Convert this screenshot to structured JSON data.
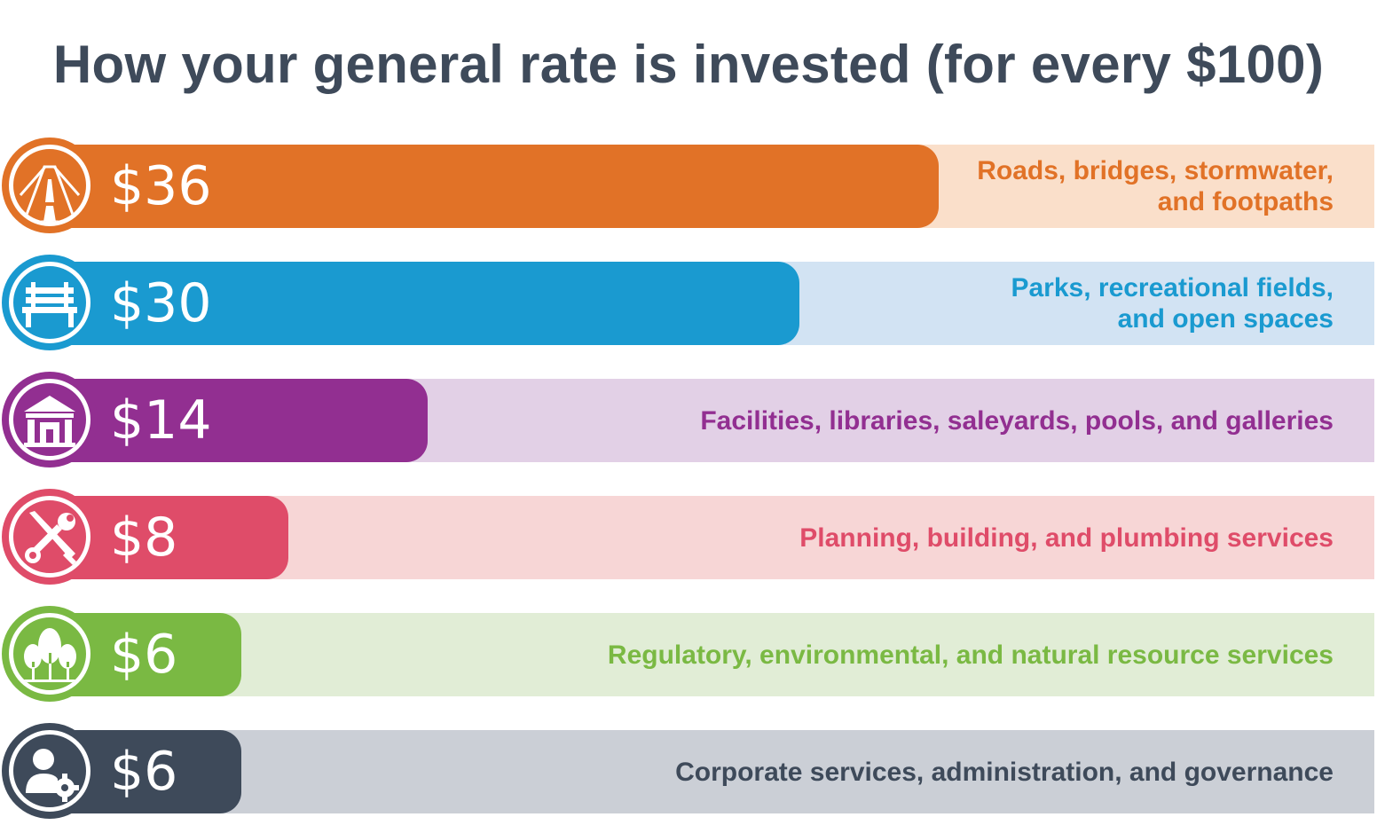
{
  "title": "How your general rate is invested (for every $100)",
  "chart_data": {
    "type": "bar",
    "orientation": "horizontal",
    "title": "How your general rate is invested (for every $100)",
    "total": 100,
    "categories": [
      "Roads, bridges, stormwater,\nand footpaths",
      "Parks, recreational fields,\nand open spaces",
      "Facilities, libraries, saleyards, pools, and galleries",
      "Planning, building, and plumbing services",
      "Regulatory, environmental, and natural resource services",
      "Corporate services, administration, and governance"
    ],
    "values": [
      36,
      30,
      14,
      8,
      6,
      6
    ],
    "value_labels": [
      "$36",
      "$30",
      "$14",
      "$8",
      "$6",
      "$6"
    ]
  },
  "rows": [
    {
      "label": "Roads, bridges, stormwater,\nand footpaths",
      "value": 36,
      "value_label": "$36",
      "icon": "road-icon",
      "color": "#e17227",
      "bg": "#fadfca"
    },
    {
      "label": "Parks, recreational fields,\nand open spaces",
      "value": 30,
      "value_label": "$30",
      "icon": "bench-icon",
      "color": "#1a9ad0",
      "bg": "#d2e3f3"
    },
    {
      "label": "Facilities, libraries, saleyards, pools, and galleries",
      "value": 14,
      "value_label": "$14",
      "icon": "building-icon",
      "color": "#922f91",
      "bg": "#e2d0e6"
    },
    {
      "label": "Planning, building, and plumbing services",
      "value": 8,
      "value_label": "$8",
      "icon": "tools-icon",
      "color": "#df4c69",
      "bg": "#f7d6d6"
    },
    {
      "label": "Regulatory, environmental, and natural resource services",
      "value": 6,
      "value_label": "$6",
      "icon": "trees-icon",
      "color": "#7ab943",
      "bg": "#e1edd6"
    },
    {
      "label": "Corporate services, administration, and governance",
      "value": 6,
      "value_label": "$6",
      "icon": "user-gear-icon",
      "color": "#3e4a5a",
      "bg": "#cbcfd6"
    }
  ]
}
